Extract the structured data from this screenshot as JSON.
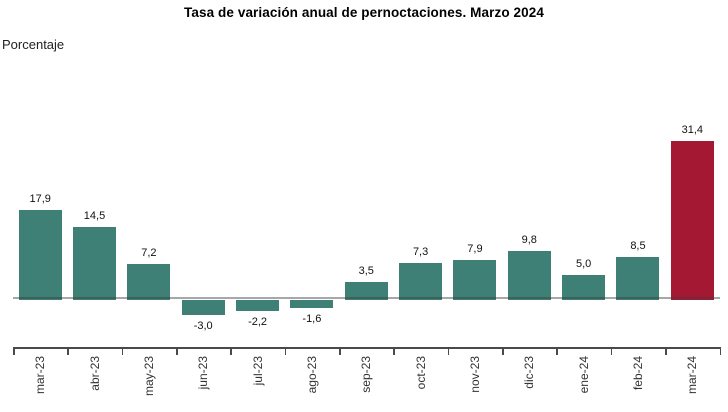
{
  "chart_data": {
    "type": "bar",
    "title": "Tasa de variación anual de pernoctaciones. Marzo 2024",
    "ylabel": "Porcentaje",
    "categories": [
      "mar-23",
      "abr-23",
      "may-23",
      "jun-23",
      "jul-23",
      "ago-23",
      "sep-23",
      "oct-23",
      "nov-23",
      "dic-23",
      "ene-24",
      "feb-24",
      "mar-24"
    ],
    "values": [
      17.9,
      14.5,
      7.2,
      -3.0,
      -2.2,
      -1.6,
      3.5,
      7.3,
      7.9,
      9.8,
      5.0,
      8.5,
      31.4
    ],
    "value_labels": [
      "17,9",
      "14,5",
      "7,2",
      "-3,0",
      "-2,2",
      "-1,6",
      "3,5",
      "7,3",
      "7,9",
      "9,8",
      "5,0",
      "8,5",
      "31,4"
    ],
    "bar_color": "#3E7F76",
    "highlight_color": "#A41834",
    "highlight_index": 12,
    "baseline_color": "rgba(60,60,60,0.45)",
    "axis_color": "#4a4a4a",
    "ylim": [
      -5,
      35
    ],
    "grid": false,
    "legend": false,
    "x_labels_rotated_degrees": -90
  }
}
